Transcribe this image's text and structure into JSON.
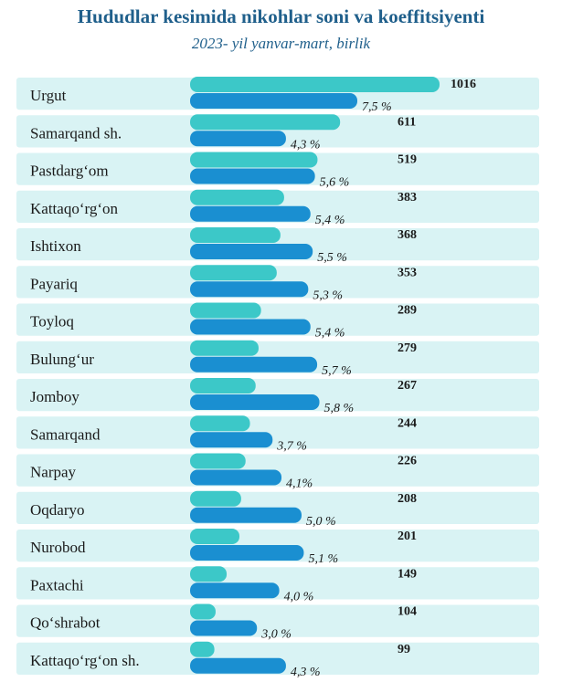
{
  "chart_data": {
    "type": "bar",
    "title": "Hududlar kesimida nikohlar soni va koeffitsiyenti",
    "subtitle": "2023- yil yanvar-mart, birlik",
    "categories": [
      "Urgut",
      "Samarqand sh.",
      "Pastdarg‘om",
      "Kattaqo‘rg‘on",
      "Ishtixon",
      "Payariq",
      "Toyloq",
      "Bulung‘ur",
      "Jomboy",
      "Samarqand",
      "Narpay",
      "Oqdaryo",
      "Nurobod",
      "Paxtachi",
      "Qo‘shrabot",
      "Kattaqo‘rg‘on sh."
    ],
    "series": [
      {
        "values": [
          1016,
          611,
          519,
          383,
          368,
          353,
          289,
          279,
          267,
          244,
          226,
          208,
          201,
          149,
          104,
          99
        ],
        "color": "#3cc8c8"
      },
      {
        "values": [
          7.5,
          4.3,
          5.6,
          5.4,
          5.5,
          5.3,
          5.4,
          5.7,
          5.8,
          3.7,
          4.1,
          5.0,
          5.1,
          4.0,
          3.0,
          4.3
        ],
        "value_labels": [
          "7,5 %",
          "4,3 %",
          "5,6 %",
          "5,4 %",
          "5,5 %",
          "5,3 %",
          "5,4 %",
          "5,7 %",
          "5,8 %",
          "3,7 %",
          "4,1%",
          "5,0 %",
          "5,1 %",
          "4,0 %",
          "3,0 %",
          "4,3 %"
        ],
        "color": "#1a8fd1"
      }
    ],
    "count_labels": [
      "1016",
      "611",
      "519",
      "383",
      "368",
      "353",
      "289",
      "279",
      "267",
      "244",
      "226",
      "208",
      "201",
      "149",
      "104",
      "99"
    ],
    "row_band_color": "#d9f3f4",
    "legend": "none",
    "grid": false
  }
}
